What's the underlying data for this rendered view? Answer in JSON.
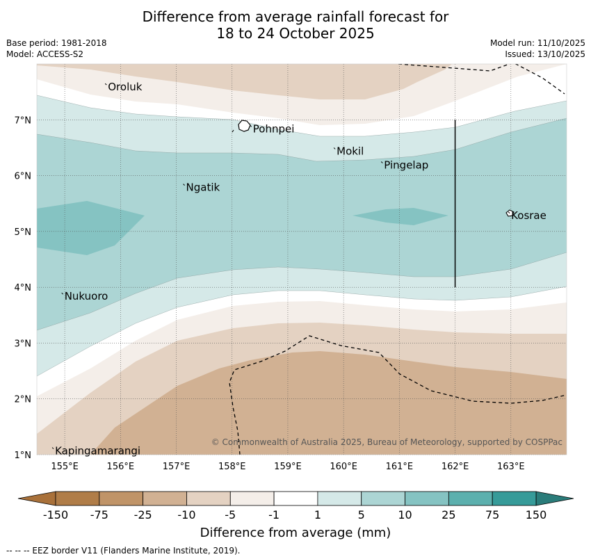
{
  "title": {
    "line1": "Difference from average rainfall forecast for",
    "line2": "18 to 24 October 2025"
  },
  "meta": {
    "base_period": "Base period: 1981-2018",
    "model": "Model: ACCESS-S2",
    "model_run": "Model run: 11/10/2025",
    "issued": "Issued: 13/10/2025"
  },
  "map": {
    "lon_range": [
      154.5,
      164.0
    ],
    "lat_range": [
      1.0,
      8.0
    ],
    "lon_ticks": [
      {
        "value": 155,
        "label": "155°E"
      },
      {
        "value": 156,
        "label": "156°E"
      },
      {
        "value": 157,
        "label": "157°E"
      },
      {
        "value": 158,
        "label": "158°E"
      },
      {
        "value": 159,
        "label": "159°E"
      },
      {
        "value": 160,
        "label": "160°E"
      },
      {
        "value": 161,
        "label": "161°E"
      },
      {
        "value": 162,
        "label": "162°E"
      },
      {
        "value": 163,
        "label": "163°E"
      }
    ],
    "lat_ticks": [
      {
        "value": 7,
        "label": "7°N"
      },
      {
        "value": 6,
        "label": "6°N"
      },
      {
        "value": 5,
        "label": "5°N"
      },
      {
        "value": 4,
        "label": "4°N"
      },
      {
        "value": 3,
        "label": "3°N"
      },
      {
        "value": 2,
        "label": "2°N"
      },
      {
        "value": 1,
        "label": "1°N"
      }
    ],
    "places": [
      {
        "name": "Oroluk",
        "lon": 155.75,
        "lat": 7.6
      },
      {
        "name": "Pohnpei",
        "lon": 158.35,
        "lat": 6.85
      },
      {
        "name": "Mokil",
        "lon": 159.85,
        "lat": 6.45
      },
      {
        "name": "Pingelap",
        "lon": 160.7,
        "lat": 6.2
      },
      {
        "name": "Ngatik",
        "lon": 157.15,
        "lat": 5.8
      },
      {
        "name": "Kosrae",
        "lon": 162.98,
        "lat": 5.3
      },
      {
        "name": "Nukuoro",
        "lon": 154.97,
        "lat": 3.85
      },
      {
        "name": "Kapingamarangi",
        "lon": 154.8,
        "lat": 1.08
      }
    ],
    "eez_divider": {
      "lon": 162.0,
      "lat_from": 4.0,
      "lat_to": 7.0
    },
    "copyright": "© Commonwealth of Australia 2025, Bureau of Meteorology, supported by COSPPac"
  },
  "legend": {
    "title": "Difference from average (mm)",
    "labels": [
      "-150",
      "-75",
      "-25",
      "-10",
      "-5",
      "-1",
      "1",
      "5",
      "10",
      "25",
      "75",
      "150"
    ],
    "colors": {
      "lt_neg150": "#a9713a",
      "neg150_neg75": "#b07d48",
      "neg75_neg25": "#c09468",
      "neg25_neg10": "#d1b193",
      "neg10_neg5": "#e4d2c2",
      "neg5_neg1": "#f4eee9",
      "neg1_1": "#ffffff",
      "p1_5": "#d5e9e8",
      "p5_10": "#acd5d4",
      "p10_25": "#85c3c2",
      "p25_75": "#5cb0ae",
      "p75_150": "#369b99",
      "gt150": "#2a7c7a"
    }
  },
  "footnote": "--  --  -- EEZ border V11 (Flanders Marine Institute, 2019)."
}
